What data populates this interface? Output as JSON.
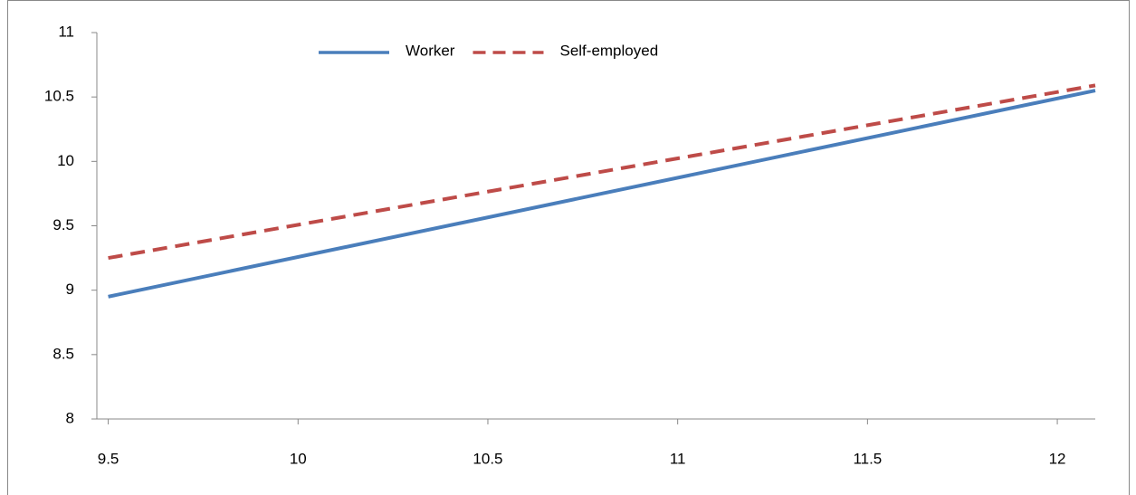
{
  "chart_data": {
    "type": "line",
    "x": [
      9.5,
      12.1
    ],
    "series": [
      {
        "name": "Worker",
        "color": "#4a7ebb",
        "dash": false,
        "values": [
          8.95,
          10.55
        ]
      },
      {
        "name": "Self-employed",
        "color": "#be4b48",
        "dash": true,
        "values": [
          9.25,
          10.59
        ]
      }
    ],
    "xlim": [
      9.47,
      12.1
    ],
    "xticks": [
      9.5,
      10,
      10.5,
      11,
      11.5,
      12
    ],
    "ylim": [
      8,
      11
    ],
    "yticks": [
      8,
      8.5,
      9,
      9.5,
      10,
      10.5,
      11
    ],
    "legend": "top",
    "grid": false
  }
}
